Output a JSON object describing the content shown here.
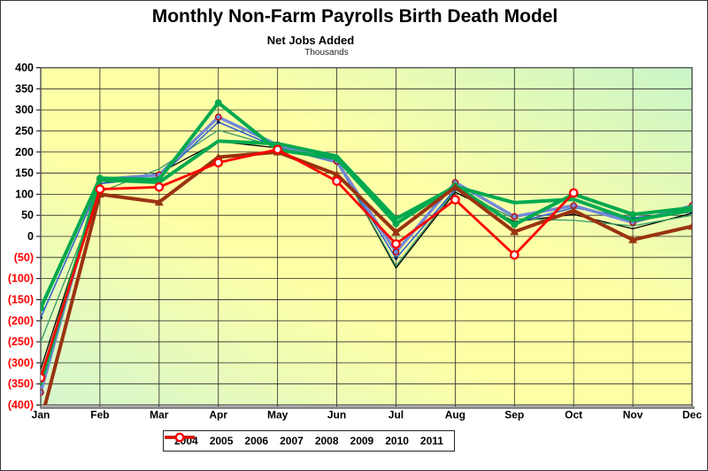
{
  "title": "Monthly Non-Farm Payrolls Birth Death Model",
  "subtitle": "Net Jobs Added",
  "units_label": "Thousands",
  "chart_data": {
    "type": "line",
    "title": "Monthly Non-Farm Payrolls Birth Death Model",
    "subtitle": "Net Jobs Added",
    "units": "Thousands",
    "categories": [
      "Jan",
      "Feb",
      "Mar",
      "Apr",
      "May",
      "Jun",
      "Jul",
      "Aug",
      "Sep",
      "Oct",
      "Nov",
      "Dec"
    ],
    "ylim": [
      -400,
      400
    ],
    "ytick_step": 50,
    "y_ticks": [
      400,
      350,
      300,
      250,
      200,
      150,
      100,
      50,
      0,
      -50,
      -100,
      -150,
      -200,
      -250,
      -300,
      -350,
      -400
    ],
    "grid": true,
    "legend_position": "bottom",
    "negative_tick_color": "#FF0000",
    "positive_tick_color": "#000000",
    "plot_bg_gradient": [
      "#c9f5c9",
      "#fdffa6",
      "#fdffa6",
      "#d4f6ce"
    ],
    "series": [
      {
        "name": "2004",
        "color": "#000000",
        "width": 1.3,
        "marker": "none",
        "values": [
          -315,
          125,
          150,
          225,
          210,
          180,
          -75,
          105,
          35,
          52,
          18,
          55
        ]
      },
      {
        "name": "2005",
        "color": "#339966",
        "width": 1.3,
        "marker": "none",
        "values": [
          -250,
          105,
          160,
          252,
          212,
          178,
          -70,
          110,
          42,
          38,
          25,
          50
        ]
      },
      {
        "name": "2006",
        "color": "#3366CC",
        "width": 1.6,
        "marker": "dot",
        "marker_color": "#002366",
        "values": [
          -193,
          125,
          140,
          271,
          211,
          175,
          -52,
          112,
          32,
          68,
          44,
          58
        ]
      },
      {
        "name": "2008",
        "color": "#7289D8",
        "width": 3.4,
        "marker": "circle-ring",
        "marker_color": "#7289D8",
        "ring_color": "#C00000",
        "values": [
          -370,
          135,
          146,
          283,
          217,
          178,
          -37,
          128,
          47,
          73,
          33,
          73
        ]
      },
      {
        "name": "2009",
        "color": "#00A94F",
        "width": 4,
        "marker": "none",
        "values": [
          -350,
          134,
          128,
          226,
          220,
          190,
          42,
          118,
          80,
          88,
          38,
          62
        ]
      },
      {
        "name": "2007",
        "color": "#00A94F",
        "width": 4,
        "marker": "circle-filled",
        "marker_color": "#00A94F",
        "values": [
          -170,
          138,
          135,
          317,
          205,
          185,
          30,
          120,
          28,
          100,
          52,
          68
        ]
      },
      {
        "name": "2010",
        "color": "#993311",
        "width": 4,
        "marker": "triangle",
        "marker_color": "#993311",
        "values": [
          -440,
          100,
          81,
          188,
          200,
          147,
          10,
          117,
          11,
          61,
          -8,
          24
        ]
      },
      {
        "name": "2011",
        "color": "#FF0000",
        "width": 2.8,
        "marker": "circle-open",
        "marker_color": "#FF0000",
        "values": [
          -335,
          112,
          117,
          175,
          206,
          131,
          -18,
          87,
          -44,
          103,
          null,
          null
        ]
      }
    ],
    "legend_order": [
      "2004",
      "2005",
      "2006",
      "2007",
      "2008",
      "2009",
      "2010",
      "2011"
    ]
  }
}
